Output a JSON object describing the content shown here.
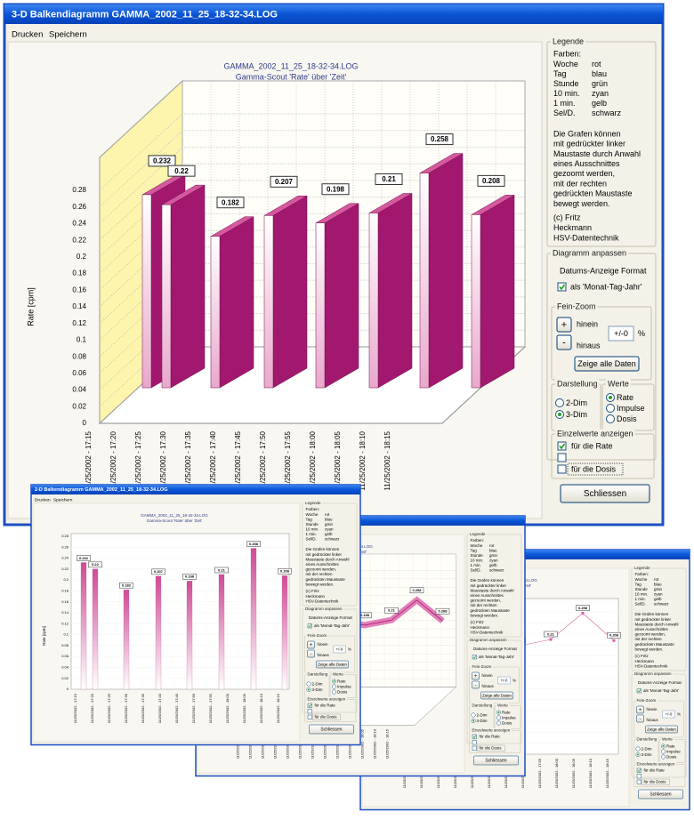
{
  "main_window": {
    "title": "3-D Balkendiagramm GAMMA_2002_11_25_18-32-34.LOG",
    "menu": [
      "Drucken",
      "Speichern"
    ],
    "chart": {
      "type": "bar",
      "title": "GAMMA_2002_11_25_18-32-34.LOG",
      "subtitle": "Gamma-Scout 'Rate' über 'Zeit'",
      "y_label": "Rate [cpm]",
      "time_labels": [
        "11/25/2002 - 17:15",
        "11/25/2002 - 17:20",
        "11/25/2002 - 17:25",
        "11/25/2002 - 17:30",
        "11/25/2002 - 17:35",
        "11/25/2002 - 17:40",
        "11/25/2002 - 17:45",
        "11/25/2002 - 17:50",
        "11/25/2002 - 17:55",
        "11/25/2002 - 18:00",
        "11/25/2002 - 18:05",
        "11/25/2002 - 18:10",
        "11/25/2002 - 18:15"
      ],
      "values": [
        0.232,
        0.22,
        0.182,
        0.207,
        0.198,
        0.21,
        0.258,
        0.208
      ],
      "color": "#a3186f",
      "ylim": [
        0,
        0.28
      ],
      "yticks": [
        0,
        0.02,
        0.04,
        0.06,
        0.08,
        0.1,
        0.12,
        0.14,
        0.16,
        0.18,
        0.2,
        0.22,
        0.24,
        0.26,
        0.28
      ],
      "grid": true
    },
    "legend": {
      "title": "Legende",
      "colors_heading": "Farben:",
      "colors": [
        [
          "Woche",
          "rot"
        ],
        [
          "Tag",
          "blau"
        ],
        [
          "Stunde",
          "grün"
        ],
        [
          "10 min.",
          "zyan"
        ],
        [
          "1 min.",
          "gelb"
        ],
        [
          "Sel/D.",
          "schwarz"
        ]
      ],
      "notes": [
        "Die Grafen können",
        "mit gedrückter linker",
        "Maustaste durch Anwahl",
        "eines Ausschnittes",
        "gezoomt werden,",
        "mit der rechten",
        "gedrückten Maustaste",
        "bewegt werden."
      ],
      "credits": [
        "(c) Fritz",
        "Heckmann",
        "HSV-Datentechnik"
      ]
    },
    "adjust": {
      "title": "Diagramm anpassen",
      "date_format_label": "Datums-Anzeige Format",
      "date_format_option": "als 'Monat-Tag-Jahr'",
      "date_format_checked": true,
      "zoom": {
        "title": "Fein-Zoom",
        "in_button": "+",
        "in_label": "hinein",
        "out_button": "-",
        "out_label": "hinaus",
        "value": "+/-0",
        "unit": "%",
        "show_all": "Zeige alle Daten"
      },
      "display": {
        "title": "Darstellung",
        "options": [
          "2-Dim",
          "3-Dim"
        ],
        "selected": 1
      },
      "values": {
        "title": "Werte",
        "options": [
          "Rate",
          "Impulse",
          "Dosis"
        ],
        "selected": 0
      },
      "single": {
        "title": "Einzelwerte anzeigen",
        "rate": "für die Rate",
        "dose": "für die Dosis",
        "checked": [
          true,
          false,
          false
        ]
      },
      "close": "Schliessen"
    }
  },
  "second_window": {
    "title": "2-D Balkendiagramm GAMMA_2002_11_25_18-32-34.LOG"
  }
}
